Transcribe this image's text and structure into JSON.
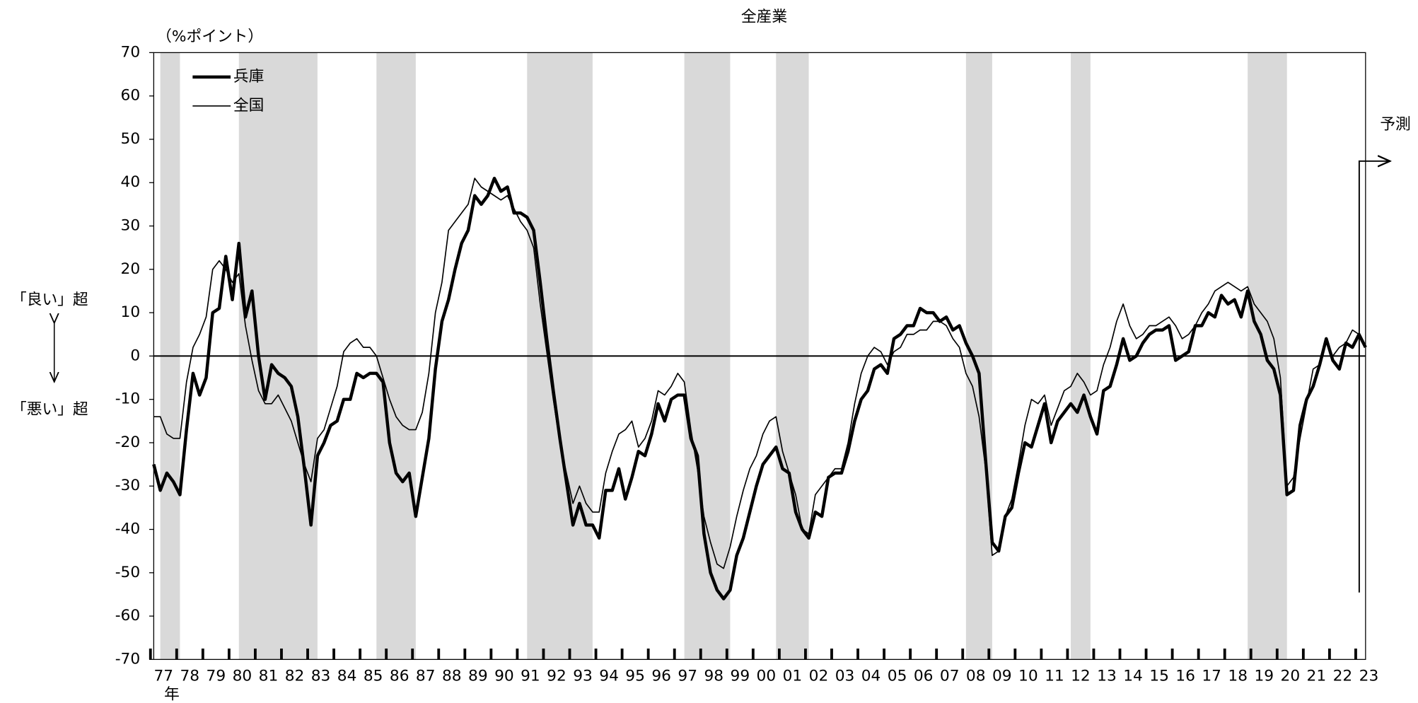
{
  "chart_data": {
    "type": "line",
    "title": "全産業",
    "y_unit_label": "（%ポイント）",
    "x_unit_label": "年",
    "upper_label": "「良い」超",
    "lower_label": "「悪い」超",
    "forecast_label": "予測",
    "legend": "upper left",
    "categories": [
      null,
      "77",
      null,
      null,
      null,
      "78",
      null,
      null,
      null,
      "79",
      null,
      null,
      null,
      "80",
      null,
      null,
      null,
      "81",
      null,
      null,
      null,
      "82",
      null,
      null,
      null,
      "83",
      null,
      null,
      null,
      "84",
      null,
      null,
      null,
      "85",
      null,
      null,
      null,
      "86",
      null,
      null,
      null,
      "87",
      null,
      null,
      null,
      "88",
      null,
      null,
      null,
      "89",
      null,
      null,
      null,
      "90",
      null,
      null,
      null,
      "91",
      null,
      null,
      null,
      "92",
      null,
      null,
      null,
      "93",
      null,
      null,
      null,
      "94",
      null,
      null,
      null,
      "95",
      null,
      null,
      null,
      "96",
      null,
      null,
      null,
      "97",
      null,
      null,
      null,
      "98",
      null,
      null,
      null,
      "99",
      null,
      null,
      null,
      "00",
      null,
      null,
      null,
      "01",
      null,
      null,
      null,
      "02",
      null,
      null,
      null,
      "03",
      null,
      null,
      null,
      "04",
      null,
      null,
      null,
      "05",
      null,
      null,
      null,
      "06",
      null,
      null,
      null,
      "07",
      null,
      null,
      null,
      "08",
      null,
      null,
      null,
      "09",
      null,
      null,
      null,
      "10",
      null,
      null,
      null,
      "11",
      null,
      null,
      null,
      "12",
      null,
      null,
      null,
      "13",
      null,
      null,
      null,
      "14",
      null,
      null,
      null,
      "15",
      null,
      null,
      null,
      "16",
      null,
      null,
      null,
      "17",
      null,
      null,
      null,
      "18",
      null,
      null,
      null,
      "19",
      null,
      null,
      null,
      "20",
      null,
      null,
      null,
      "21",
      null,
      null,
      null,
      "22",
      null,
      null,
      null,
      "23"
    ],
    "series": [
      {
        "name": "兵庫",
        "color": "#000000",
        "width": 3.5,
        "values": [
          -25,
          -31,
          -27,
          -29,
          -32,
          -17,
          -4,
          -9,
          -5,
          10,
          11,
          23,
          13,
          26,
          9,
          15,
          0,
          -10,
          -2,
          -4,
          -5,
          -7,
          -14,
          -26,
          -39,
          -23,
          -20,
          -16,
          -15,
          -10,
          -10,
          -4,
          -5,
          -4,
          -4,
          -6,
          -20,
          -27,
          -29,
          -27,
          -37,
          -28,
          -19,
          -3,
          8,
          13,
          20,
          26,
          29,
          37,
          35,
          37,
          41,
          38,
          39,
          33,
          33,
          32,
          29,
          17,
          4,
          -8,
          -19,
          -29,
          -39,
          -34,
          -39,
          -39,
          -42,
          -31,
          -31,
          -26,
          -33,
          -28,
          -22,
          -23,
          -18,
          -11,
          -15,
          -10,
          -9,
          -9,
          -19,
          -23,
          -41,
          -50,
          -54,
          -56,
          -54,
          -46,
          -42,
          -36,
          -30,
          -25,
          -23,
          -21,
          -26,
          -27,
          -36,
          -40,
          -42,
          -36,
          -37,
          -28,
          -27,
          -27,
          -22,
          -15,
          -10,
          -8,
          -3,
          -2,
          -4,
          4,
          5,
          7,
          7,
          11,
          10,
          10,
          8,
          9,
          6,
          7,
          3,
          0,
          -4,
          -24,
          -43,
          -45,
          -37,
          -35,
          -27,
          -20,
          -21,
          -16,
          -11,
          -20,
          -15,
          -13,
          -11,
          -13,
          -9,
          -14,
          -18,
          -8,
          -7,
          -2,
          4,
          -1,
          0,
          3,
          5,
          6,
          6,
          7,
          -1,
          0,
          1,
          7,
          7,
          10,
          9,
          14,
          12,
          13,
          9,
          15,
          8,
          5,
          -1,
          -3,
          -9,
          -32,
          -31,
          -16,
          -10,
          -7,
          -2,
          4,
          -1,
          -3,
          3,
          2,
          5,
          2
        ]
      },
      {
        "name": "全国",
        "color": "#000000",
        "width": 1.3,
        "values": [
          -14,
          -14,
          -18,
          -19,
          -19,
          -6,
          2,
          5,
          9,
          20,
          22,
          20,
          17,
          19,
          7,
          -1,
          -8,
          -11,
          -11,
          -9,
          -12,
          -15,
          -20,
          -25,
          -29,
          -19,
          -17,
          -12,
          -7,
          1,
          3,
          4,
          2,
          2,
          0,
          -5,
          -10,
          -14,
          -16,
          -17,
          -17,
          -13,
          -4,
          10,
          17,
          29,
          31,
          33,
          35,
          41,
          39,
          38,
          37,
          36,
          37,
          34,
          31,
          29,
          25,
          12,
          1,
          -10,
          -20,
          -27,
          -34,
          -30,
          -34,
          -36,
          -36,
          -27,
          -22,
          -18,
          -17,
          -15,
          -21,
          -19,
          -15,
          -8,
          -9,
          -7,
          -4,
          -6,
          -17,
          -26,
          -37,
          -43,
          -48,
          -49,
          -44,
          -37,
          -31,
          -26,
          -23,
          -18,
          -15,
          -14,
          -22,
          -27,
          -32,
          -40,
          -41,
          -32,
          -30,
          -28,
          -26,
          -26,
          -20,
          -11,
          -4,
          0,
          2,
          1,
          -2,
          1,
          2,
          5,
          5,
          6,
          6,
          8,
          8,
          7,
          4,
          2,
          -4,
          -7,
          -14,
          -26,
          -46,
          -45,
          -37,
          -33,
          -25,
          -16,
          -10,
          -11,
          -9,
          -16,
          -12,
          -8,
          -7,
          -4,
          -6,
          -9,
          -8,
          -2,
          2,
          8,
          12,
          7,
          4,
          5,
          7,
          7,
          8,
          9,
          7,
          4,
          5,
          7,
          10,
          12,
          15,
          16,
          17,
          16,
          15,
          16,
          12,
          10,
          8,
          4,
          -5,
          -30,
          -28,
          -19,
          -11,
          -3,
          -2,
          3,
          0,
          2,
          3,
          6,
          5,
          null
        ]
      }
    ],
    "shaded_periods": [
      [
        1,
        4
      ],
      [
        13,
        25
      ],
      [
        34,
        40
      ],
      [
        57,
        67
      ],
      [
        81,
        88
      ],
      [
        95,
        100
      ],
      [
        124,
        128
      ],
      [
        140,
        143
      ],
      [
        167,
        173
      ]
    ],
    "shade_color": "#d9d9d9",
    "ylim": [
      -70,
      70
    ],
    "yticks": [
      -70,
      -60,
      -50,
      -40,
      -30,
      -20,
      -10,
      0,
      10,
      20,
      30,
      40,
      50,
      60,
      70
    ],
    "zero_line": true,
    "grid": false
  }
}
